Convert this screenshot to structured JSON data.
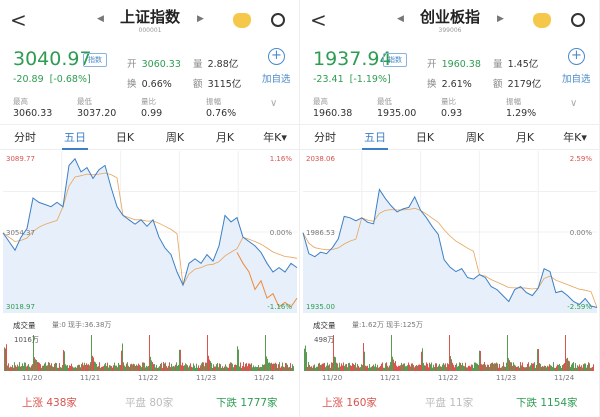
{
  "panels": [
    {
      "title": "上证指数",
      "code": "000001",
      "price": "3040.97",
      "badge": "指数",
      "change": "-20.89",
      "change_pct": "[-0.68%]",
      "open_label": "开",
      "open": "3060.33",
      "vol_label": "量",
      "vol": "2.88亿",
      "turn_label": "换",
      "turn": "0.66%",
      "amt_label": "额",
      "amt": "3115亿",
      "add_watch": "加自选",
      "stats": [
        {
          "label": "最高",
          "value": "3060.33"
        },
        {
          "label": "最低",
          "value": "3037.20"
        },
        {
          "label": "量比",
          "value": "0.99"
        },
        {
          "label": "振幅",
          "value": "0.76%"
        }
      ],
      "tabs": [
        "分时",
        "五日",
        "日K",
        "周K",
        "月K",
        "年K▾"
      ],
      "active_tab": 1,
      "axis": {
        "top": "3089.77",
        "mid": "3054.37",
        "bottom": "3018.97",
        "top_pct": "1.16%",
        "mid_pct": "0.00%",
        "bottom_pct": "-1.16%"
      },
      "volume_label": "成交量",
      "volume_info": "量:0 现手:36.38万",
      "volume_max": "1016万",
      "dates": [
        "11/20",
        "11/21",
        "11/22",
        "11/23",
        "11/24"
      ],
      "up": "上涨 438家",
      "flat": "平盘 80家",
      "down": "下跌 1777家",
      "chart_data": {
        "type": "line",
        "ylim": [
          3018.97,
          3089.77
        ],
        "values": [
          3054,
          3050,
          3046,
          3052,
          3056,
          3070,
          3068,
          3067,
          3066,
          3068,
          3066,
          3085,
          3088,
          3082,
          3084,
          3079,
          3083,
          3085,
          3075,
          3066,
          3062,
          3060,
          3058,
          3060,
          3057,
          3060,
          3052,
          3047,
          3044,
          3036,
          3030,
          3040,
          3042,
          3040,
          3044,
          3041,
          3048,
          3062,
          3059,
          3061,
          3052,
          3050,
          3048,
          3045,
          3040,
          3036,
          3038,
          3036,
          3040,
          3038
        ],
        "series2_tail": [
          3045,
          3040,
          3036,
          3028,
          3032,
          3024,
          3026,
          3020,
          3022,
          3020,
          3024
        ]
      }
    },
    {
      "title": "创业板指",
      "code": "399006",
      "price": "1937.94",
      "badge": "指数",
      "change": "-23.41",
      "change_pct": "[-1.19%]",
      "open_label": "开",
      "open": "1960.38",
      "vol_label": "量",
      "vol": "1.45亿",
      "turn_label": "换",
      "turn": "2.61%",
      "amt_label": "额",
      "amt": "2179亿",
      "add_watch": "加自选",
      "stats": [
        {
          "label": "最高",
          "value": "1960.38"
        },
        {
          "label": "最低",
          "value": "1935.00"
        },
        {
          "label": "量比",
          "value": "0.93"
        },
        {
          "label": "振幅",
          "value": "1.29%"
        }
      ],
      "tabs": [
        "分时",
        "五日",
        "日K",
        "周K",
        "月K",
        "年K▾"
      ],
      "active_tab": 1,
      "axis": {
        "top": "2038.06",
        "mid": "1986.53",
        "bottom": "1935.00",
        "top_pct": "2.59%",
        "mid_pct": "0.00%",
        "bottom_pct": "-2.59%"
      },
      "volume_label": "成交量",
      "volume_info": "量:1.62万 现手:125万",
      "volume_max": "498万",
      "dates": [
        "11/20",
        "11/21",
        "11/22",
        "11/23",
        "11/24"
      ],
      "up": "上涨 160家",
      "flat": "平盘 11家",
      "down": "下跌 1154家",
      "chart_data": {
        "type": "line",
        "ylim": [
          1935.0,
          2038.06
        ],
        "values": [
          1986,
          1972,
          1970,
          1973,
          1972,
          1976,
          1982,
          1997,
          1996,
          1994,
          1996,
          1993,
          1992,
          2015,
          2009,
          2004,
          2000,
          2002,
          2003,
          2010,
          2001,
          1996,
          1990,
          1985,
          1968,
          1963,
          1960,
          1962,
          1956,
          1955,
          1958,
          1956,
          1950,
          1948,
          1944,
          1940,
          1948,
          1950,
          1946,
          1944,
          1949,
          1962,
          1960,
          1946,
          1947,
          1944,
          1940,
          1938,
          1942,
          1937,
          1936
        ]
      }
    }
  ],
  "colors": {
    "up": "#d9534f",
    "down": "#2e9c52",
    "line": "#3d7fc4",
    "avg": "#e8a45a",
    "fill": "#e6effa"
  }
}
